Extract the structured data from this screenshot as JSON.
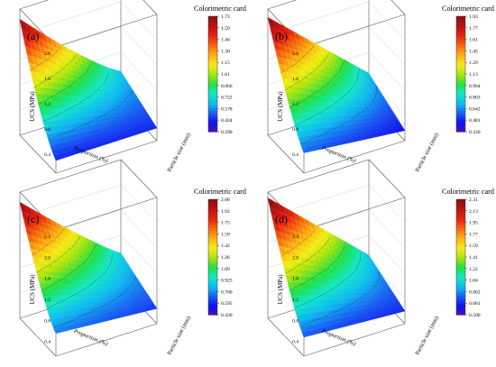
{
  "colors": {
    "scale": [
      "#5a0fb0",
      "#1010ee",
      "#1b5bf2",
      "#10b8f0",
      "#16e7c9",
      "#1fe04a",
      "#a2e312",
      "#f3ee15",
      "#fbb615",
      "#f46f0e",
      "#e8260f",
      "#c21414",
      "#8e1111"
    ],
    "frame": "#555555",
    "text": "#000000"
  },
  "chart_data": [
    {
      "type": "surface3d",
      "panel_label": "(a)",
      "colorbar_title": "Colorimetric card",
      "colorbar_ticks": [
        "1.73",
        "1.59",
        "1.44",
        "1.30",
        "1.15",
        "1.01",
        "0.866",
        "0.722",
        "0.578",
        "0.434",
        "0.290"
      ],
      "zlabel": "UCS (MPa)",
      "ztick_labels": [
        "2.0",
        "1.6",
        "1.2",
        "0.8",
        "0.4"
      ],
      "xlabel": "Proportion (%)",
      "ylabel": "Particle size (mm)",
      "zlim": [
        0.29,
        1.73
      ]
    },
    {
      "type": "surface3d",
      "panel_label": "(b)",
      "colorbar_title": "Colorimetric card",
      "colorbar_ticks": [
        "1.93",
        "1.77",
        "1.61",
        "1.45",
        "1.29",
        "1.13",
        "0.964",
        "0.803",
        "0.642",
        "0.481",
        "0.320"
      ],
      "zlabel": "UCS (MPa)",
      "ztick_labels": [
        "2.0",
        "1.6",
        "1.2",
        "0.8",
        "0.4"
      ],
      "xlabel": "Proportion (%)",
      "ylabel": "Particle size (mm)",
      "zlim": [
        0.32,
        1.93
      ]
    },
    {
      "type": "surface3d",
      "panel_label": "(c)",
      "colorbar_title": "Colorimetric card",
      "colorbar_ticks": [
        "2.08",
        "1.92",
        "1.75",
        "1.59",
        "1.42",
        "1.26",
        "1.09",
        "0.925",
        "0.760",
        "0.595",
        "0.430"
      ],
      "zlabel": "UCS (MPa)",
      "ztick_labels": [
        "2.4",
        "2.0",
        "1.6",
        "1.2",
        "0.8",
        "0.4"
      ],
      "xlabel": "Proportion (%)",
      "ylabel": "Particle size (mm)",
      "zlim": [
        0.43,
        2.08
      ]
    },
    {
      "type": "surface3d",
      "panel_label": "(d)",
      "colorbar_title": "Colorimetric card",
      "colorbar_ticks": [
        "2.31",
        "2.13",
        "1.95",
        "1.77",
        "1.59",
        "1.41",
        "1.22",
        "1.04",
        "0.862",
        "0.681",
        "0.500"
      ],
      "zlabel": "UCS (MPa)",
      "ztick_labels": [
        "2.4",
        "2.0",
        "1.6",
        "1.2",
        "0.8",
        "0.4"
      ],
      "xlabel": "Proportion (%)",
      "ylabel": "Particle size (mm)",
      "zlim": [
        0.5,
        2.31
      ]
    }
  ]
}
